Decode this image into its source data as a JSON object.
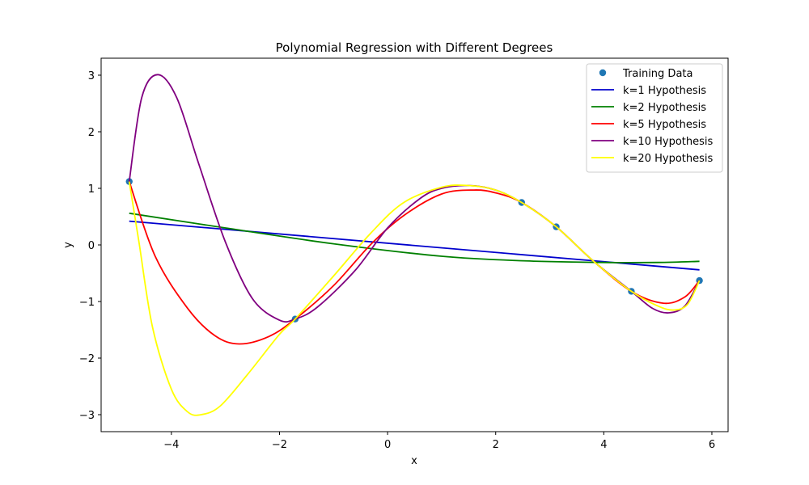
{
  "chart_data": {
    "type": "line",
    "title": "Polynomial Regression with Different Degrees",
    "xlabel": "x",
    "ylabel": "y",
    "xlim": [
      -5.3,
      6.3
    ],
    "ylim": [
      -3.3,
      3.3
    ],
    "xticks": [
      -4,
      -2,
      0,
      2,
      4,
      6
    ],
    "xtick_labels": [
      "−4",
      "−2",
      "0",
      "2",
      "4",
      "6"
    ],
    "yticks": [
      -3,
      -2,
      -1,
      0,
      1,
      2,
      3
    ],
    "ytick_labels": [
      "−3",
      "−2",
      "−1",
      "0",
      "1",
      "2",
      "3"
    ],
    "grid": false,
    "legend_position": "top-right",
    "training_data": {
      "name": "Training Data",
      "color": "#1f77b4",
      "x": [
        -4.78,
        -1.71,
        2.48,
        3.12,
        4.51,
        5.77
      ],
      "y": [
        1.12,
        -1.31,
        0.75,
        0.32,
        -0.82,
        -0.63
      ]
    },
    "series": [
      {
        "name": "k=1 Hypothesis",
        "color": "#0000cd",
        "x": [
          -4.78,
          5.77
        ],
        "y": [
          0.42,
          -0.44
        ]
      },
      {
        "name": "k=2 Hypothesis",
        "color": "#008000",
        "x": [
          -4.78,
          -3.0,
          -1.0,
          1.0,
          2.5,
          4.0,
          5.0,
          5.77
        ],
        "y": [
          0.56,
          0.3,
          0.02,
          -0.2,
          -0.28,
          -0.31,
          -0.31,
          -0.29
        ]
      },
      {
        "name": "k=5 Hypothesis",
        "color": "#ff0000",
        "x": [
          -4.78,
          -4.3,
          -3.7,
          -3.2,
          -2.75,
          -2.2,
          -1.71,
          -1.0,
          -0.3,
          0.3,
          1.0,
          1.6,
          2.0,
          2.48,
          3.12,
          3.8,
          4.51,
          5.1,
          5.5,
          5.77
        ],
        "y": [
          1.12,
          -0.2,
          -1.12,
          -1.6,
          -1.75,
          -1.62,
          -1.31,
          -0.72,
          0.02,
          0.52,
          0.9,
          0.97,
          0.92,
          0.75,
          0.32,
          -0.28,
          -0.82,
          -1.03,
          -0.92,
          -0.63
        ]
      },
      {
        "name": "k=10 Hypothesis",
        "color": "#800080",
        "x": [
          -4.78,
          -4.55,
          -4.25,
          -3.9,
          -3.5,
          -3.0,
          -2.5,
          -2.0,
          -1.71,
          -1.3,
          -0.6,
          0.0,
          0.6,
          1.0,
          1.5,
          2.0,
          2.48,
          3.12,
          3.8,
          4.51,
          4.9,
          5.2,
          5.5,
          5.77
        ],
        "y": [
          1.12,
          2.6,
          3.01,
          2.6,
          1.45,
          0.05,
          -0.95,
          -1.33,
          -1.31,
          -1.1,
          -0.45,
          0.3,
          0.82,
          1.0,
          1.05,
          0.97,
          0.75,
          0.32,
          -0.28,
          -0.82,
          -1.12,
          -1.2,
          -1.08,
          -0.63
        ]
      },
      {
        "name": "k=20 Hypothesis",
        "color": "#ffff00",
        "x": [
          -4.78,
          -4.6,
          -4.35,
          -4.0,
          -3.7,
          -3.45,
          -3.1,
          -2.6,
          -2.0,
          -1.71,
          -1.0,
          -0.3,
          0.3,
          1.0,
          1.5,
          2.0,
          2.48,
          3.12,
          3.8,
          4.51,
          5.0,
          5.3,
          5.55,
          5.77
        ],
        "y": [
          1.12,
          0.05,
          -1.45,
          -2.55,
          -2.95,
          -3.0,
          -2.85,
          -2.3,
          -1.58,
          -1.31,
          -0.55,
          0.22,
          0.75,
          1.02,
          1.05,
          0.97,
          0.75,
          0.32,
          -0.28,
          -0.82,
          -1.08,
          -1.15,
          -1.05,
          -0.63
        ]
      }
    ]
  }
}
